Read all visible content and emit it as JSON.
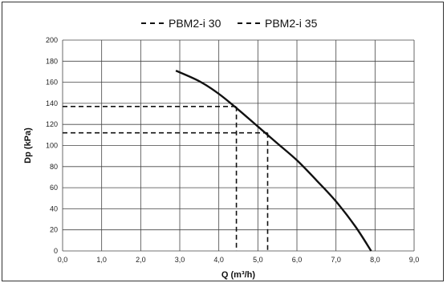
{
  "chart_data": {
    "type": "line",
    "xlabel": "Q (m³/h)",
    "ylabel": "Dp (kPa)",
    "xlim": [
      0,
      9
    ],
    "ylim": [
      0,
      200
    ],
    "x_ticks": [
      "0,0",
      "1,0",
      "2,0",
      "3,0",
      "4,0",
      "5,0",
      "6,0",
      "7,0",
      "8,0",
      "9,0"
    ],
    "y_ticks": [
      "0",
      "20",
      "40",
      "60",
      "80",
      "100",
      "120",
      "140",
      "160",
      "180",
      "200"
    ],
    "grid": true,
    "legend": [
      {
        "label": "PBM2-i 30",
        "style": "dashed"
      },
      {
        "label": "PBM2-i 35",
        "style": "dashed"
      }
    ],
    "legend_position": "top",
    "series": [
      {
        "style": "solid",
        "x": [
          2.9,
          3.5,
          4.0,
          4.5,
          5.0,
          5.5,
          6.0,
          6.5,
          7.0,
          7.5,
          7.9
        ],
        "y": [
          171,
          161,
          149,
          134,
          118,
          102,
          86,
          67,
          47,
          23,
          0
        ]
      }
    ],
    "operating_points": [
      {
        "label": "PBM2-i 30",
        "x": 4.45,
        "y": 137
      },
      {
        "label": "PBM2-i 35",
        "x": 5.25,
        "y": 112
      }
    ],
    "colors": {
      "line": "#111111",
      "grid": "#444444",
      "frame": "#333333"
    }
  }
}
